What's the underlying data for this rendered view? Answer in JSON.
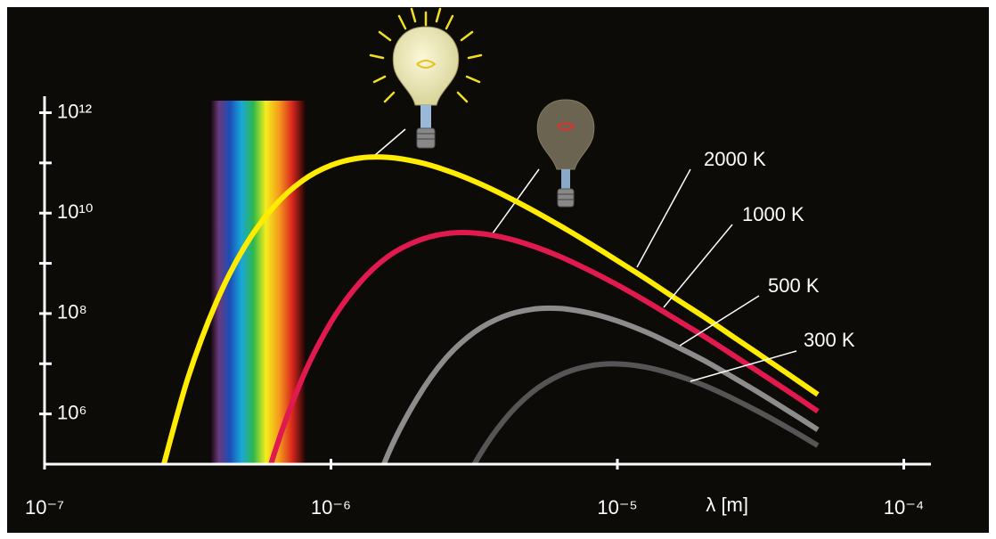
{
  "chart_data": {
    "type": "line",
    "x_label": "λ [m]",
    "log_x": true,
    "log_y": true,
    "x": [
      2.51e-07,
      3.16e-07,
      3.98e-07,
      5.01e-07,
      6.31e-07,
      7.94e-07,
      1e-06,
      1.26e-06,
      1.58e-06,
      2e-06,
      2.51e-06,
      3.16e-06,
      3.98e-06,
      5.01e-06,
      6.31e-06,
      7.94e-06,
      1e-05,
      1.26e-05,
      1.58e-05,
      2e-05,
      2.51e-05,
      3.16e-05,
      3.98e-05,
      5.01e-05
    ],
    "series": [
      {
        "name": "2000 K",
        "color": "#ffec00",
        "values": [
          43500.0,
          4970000.0,
          169000000.0,
          2210000000.0,
          13300000000.0,
          44000000000.0,
          89500000000.0,
          125000000000.0,
          129000000000.0,
          105000000000.0,
          72100000000.0,
          43200000000.0,
          23400000000.0,
          11800000000.0,
          5600000000.0,
          2560000000.0,
          1130000000.0,
          489000000.0,
          207000000.0,
          86700000.0,
          35900000.0,
          14800000.0,
          6010000.0,
          2440000.0
        ]
      },
      {
        "name": "1000 K",
        "color": "#e0194f",
        "values": [
          null,
          null,
          null,
          1290.0,
          149000.0,
          5120000.0,
          67100000.0,
          410000000.0,
          1360000000.0,
          2790000000.0,
          3890000000.0,
          4030000000.0,
          3300000000.0,
          2260000000.0,
          1360000000.0,
          736000000.0,
          371000000.0,
          176000000.0,
          80500000.0,
          35600000.0,
          15400000.0,
          6530000.0,
          2740000.0,
          1130000.0
        ]
      },
      {
        "name": "500 K",
        "color": "#8c8c8c",
        "values": [
          null,
          null,
          null,
          null,
          null,
          null,
          null,
          4460.0,
          155000.0,
          2050000.0,
          12600000.0,
          42100000.0,
          86500000.0,
          121000000.0,
          126000000.0,
          103000000.0,
          71100000.0,
          42700000.0,
          23200000.0,
          11700000.0,
          5560000.0,
          2540000.0,
          1120000.0,
          485000.0
        ]
      },
      {
        "name": "300 K",
        "color": "#555555",
        "values": [
          null,
          null,
          null,
          null,
          null,
          null,
          null,
          null,
          null,
          null,
          6100.0,
          97300.0,
          697000.0,
          2640000.0,
          5960000.0,
          9000000.0,
          9930000.0,
          8530000.0,
          6080000.0,
          3740000.0,
          2070000.0,
          1060000.0,
          511000.0,
          235000.0
        ]
      }
    ],
    "xlim": [
      1e-07,
      0.0001
    ],
    "ylim": [
      100000.0,
      1600000000000.0
    ],
    "xticks": [
      {
        "value": 1e-07,
        "label": "10⁻⁷"
      },
      {
        "value": 1e-06,
        "label": "10⁻⁶"
      },
      {
        "value": 1e-05,
        "label": "10⁻⁵"
      },
      {
        "value": 0.0001,
        "label": "10⁻⁴"
      }
    ],
    "yticks": [
      {
        "value": 1000000.0,
        "label": "10⁶"
      },
      {
        "value": 100000000.0,
        "label": "10⁸"
      },
      {
        "value": 10000000000.0,
        "label": "10¹⁰"
      },
      {
        "value": 1000000000000.0,
        "label": "10¹²"
      }
    ],
    "y_minor_ticks": [
      10000000.0,
      1000000000.0,
      100000000000.0
    ]
  }
}
